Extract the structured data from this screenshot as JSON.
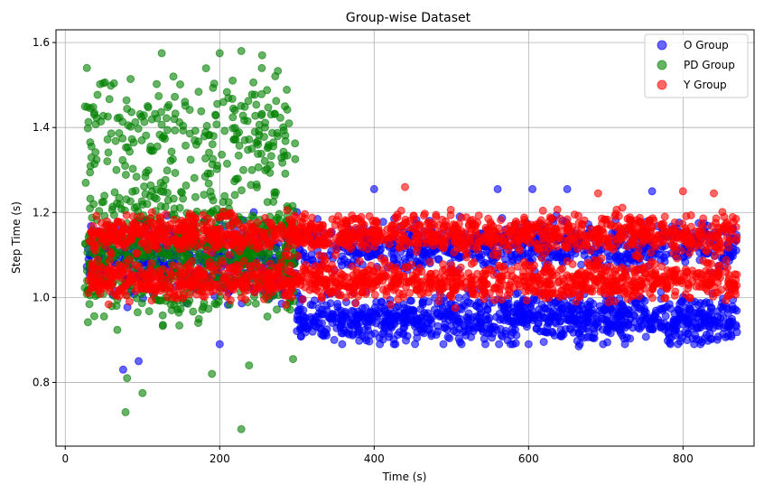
{
  "chart_data": {
    "type": "scatter",
    "title": "Group-wise Dataset",
    "xlabel": "Time (s)",
    "ylabel": "Step Time (s)",
    "xlim": [
      -12,
      892
    ],
    "ylim": [
      0.65,
      1.63
    ],
    "xticks": [
      0,
      200,
      400,
      600,
      800
    ],
    "yticks": [
      0.8,
      1.0,
      1.2,
      1.4,
      1.6
    ],
    "grid": true,
    "legend_position": "top-right",
    "marker_alpha": 0.6,
    "series": [
      {
        "name": "O Group",
        "color": "#0000ff",
        "points_note": "dense band",
        "regions": [
          {
            "x_range": [
              28,
              300
            ],
            "y_range": [
              0.95,
              1.22
            ],
            "count": 420
          },
          {
            "x_range": [
              300,
              870
            ],
            "y_range": [
              0.89,
              1.25
            ],
            "count": 1700
          }
        ],
        "outliers": [
          [
            75,
            0.83
          ],
          [
            95,
            0.85
          ],
          [
            200,
            0.89
          ],
          [
            400,
            1.255
          ],
          [
            560,
            1.255
          ],
          [
            605,
            1.255
          ],
          [
            650,
            1.255
          ],
          [
            760,
            1.25
          ],
          [
            600,
            0.89
          ],
          [
            665,
            0.885
          ]
        ]
      },
      {
        "name": "PD Group",
        "color": "#008000",
        "regions": [
          {
            "x_range": [
              25,
              298
            ],
            "y_range": [
              0.9,
              1.33
            ],
            "count": 700
          },
          {
            "x_range": [
              25,
              298
            ],
            "y_range": [
              1.2,
              1.58
            ],
            "count": 230
          }
        ],
        "outliers": [
          [
            28,
            1.54
          ],
          [
            78,
            0.73
          ],
          [
            100,
            0.775
          ],
          [
            190,
            0.82
          ],
          [
            228,
            0.69
          ],
          [
            238,
            0.84
          ],
          [
            295,
            0.855
          ],
          [
            80,
            0.81
          ],
          [
            125,
            1.575
          ],
          [
            200,
            1.575
          ],
          [
            228,
            1.58
          ],
          [
            255,
            1.57
          ]
        ]
      },
      {
        "name": "Y Group",
        "color": "#ff0000",
        "regions": [
          {
            "x_range": [
              30,
              870
            ],
            "y_range": [
              0.97,
              1.23
            ],
            "count": 2400
          }
        ],
        "outliers": [
          [
            440,
            1.26
          ],
          [
            690,
            1.245
          ],
          [
            800,
            1.25
          ],
          [
            840,
            1.245
          ],
          [
            505,
            0.975
          ]
        ]
      }
    ]
  }
}
